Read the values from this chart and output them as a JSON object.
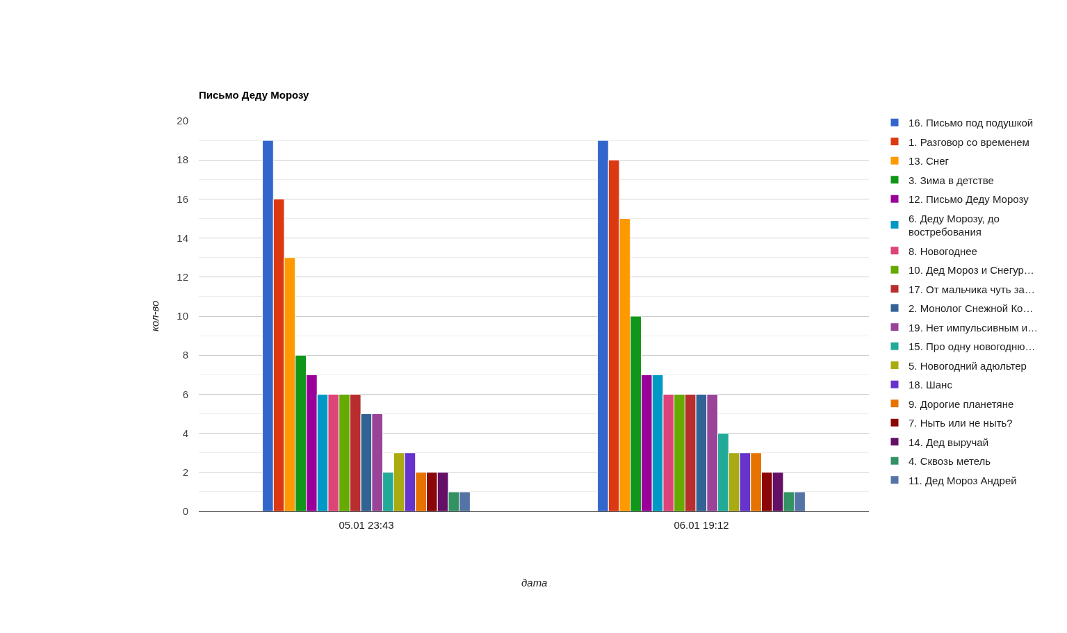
{
  "chart_data": {
    "type": "bar",
    "title": "Письмо Деду Морозу",
    "xlabel": "дата",
    "ylabel": "кол-во",
    "categories": [
      "05.01 23:43",
      "06.01 19:12"
    ],
    "series": [
      {
        "name": "16. Письмо под подушкой",
        "color": "#3366cc",
        "values": [
          19,
          19
        ]
      },
      {
        "name": "1. Разговор со временем",
        "color": "#dc3912",
        "values": [
          16,
          18
        ]
      },
      {
        "name": "13. Снег",
        "color": "#ff9900",
        "values": [
          13,
          15
        ]
      },
      {
        "name": "3. Зима в детстве",
        "color": "#109618",
        "values": [
          8,
          10
        ]
      },
      {
        "name": "12. Письмо Деду Морозу",
        "color": "#990099",
        "values": [
          7,
          7
        ]
      },
      {
        "name": "6. Деду Морозу, до востребования",
        "color": "#0099c6",
        "values": [
          6,
          7
        ]
      },
      {
        "name": "8. Новогоднее",
        "color": "#dd4477",
        "values": [
          6,
          6
        ]
      },
      {
        "name": "10. Дед Мороз и Снегур…",
        "color": "#66aa00",
        "values": [
          6,
          6
        ]
      },
      {
        "name": "17. От мальчика чуть за…",
        "color": "#b82e2e",
        "values": [
          6,
          6
        ]
      },
      {
        "name": "2. Монолог Снежной Ко…",
        "color": "#316395",
        "values": [
          5,
          6
        ]
      },
      {
        "name": "19. Нет импульсивным и…",
        "color": "#994499",
        "values": [
          5,
          6
        ]
      },
      {
        "name": "15. Про одну новогодню…",
        "color": "#22aa99",
        "values": [
          2,
          4
        ]
      },
      {
        "name": "5. Новогодний адюльтер",
        "color": "#aaaa11",
        "values": [
          3,
          3
        ]
      },
      {
        "name": "18. Шанс",
        "color": "#6633cc",
        "values": [
          3,
          3
        ]
      },
      {
        "name": "9. Дорогие планетяне",
        "color": "#e67300",
        "values": [
          2,
          3
        ]
      },
      {
        "name": "7. Ныть или не ныть?",
        "color": "#8b0707",
        "values": [
          2,
          2
        ]
      },
      {
        "name": "14. Дед выручай",
        "color": "#651067",
        "values": [
          2,
          2
        ]
      },
      {
        "name": "4. Сквозь метель",
        "color": "#329262",
        "values": [
          1,
          1
        ]
      },
      {
        "name": "11. Дед Мороз Андрей",
        "color": "#5574a6",
        "values": [
          1,
          1
        ]
      }
    ],
    "ylim": [
      0,
      20
    ],
    "yticks": [
      0,
      {
        "value": 1,
        "label": null
      },
      2,
      {
        "value": 3,
        "label": null
      },
      4,
      {
        "value": 5,
        "label": null
      },
      6,
      {
        "value": 7,
        "label": null
      },
      8,
      {
        "value": 9,
        "label": null
      },
      10,
      {
        "value": 11,
        "label": null
      },
      12,
      {
        "value": 13,
        "label": null
      },
      14,
      {
        "value": 15,
        "label": null
      },
      16,
      {
        "value": 17,
        "label": null
      },
      18,
      {
        "value": 19,
        "label": null
      },
      20
    ],
    "grid": "y",
    "legend": "top right"
  }
}
